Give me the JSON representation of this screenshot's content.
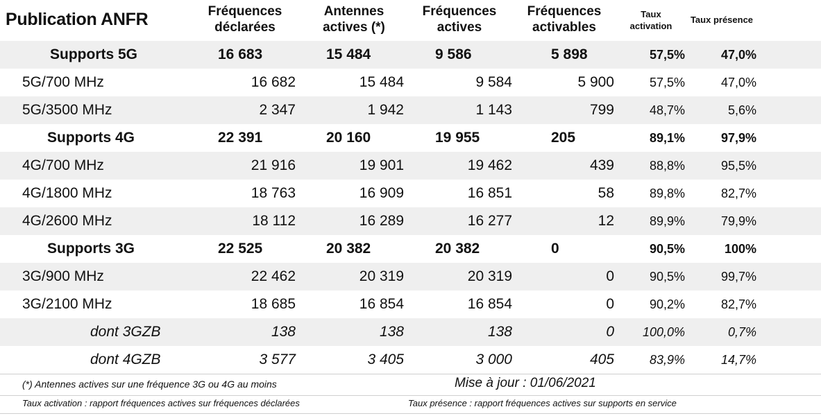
{
  "title": "Publication ANFR",
  "columns": {
    "freq_declarees": [
      "Fréquences",
      "déclarées"
    ],
    "antennes_actives": [
      "Antennes",
      "actives (*)"
    ],
    "freq_actives": [
      "Fréquences",
      "actives"
    ],
    "freq_activables": [
      "Fréquences",
      "activables"
    ],
    "taux_activation": [
      "Taux",
      "activation"
    ],
    "taux_presence": [
      "Taux présence"
    ]
  },
  "rows": [
    {
      "kind": "total",
      "label": "Supports 5G",
      "v": [
        "16 683",
        "15 484",
        "9 586",
        "5 898"
      ],
      "ta": "57,5%",
      "tp": "47,0%"
    },
    {
      "kind": "band",
      "label": "5G/700 MHz",
      "v": [
        "16 682",
        "15 484",
        "9 584",
        "5 900"
      ],
      "ta": "57,5%",
      "tp": "47,0%"
    },
    {
      "kind": "band",
      "label": "5G/3500 MHz",
      "v": [
        "2 347",
        "1 942",
        "1 143",
        "799"
      ],
      "ta": "48,7%",
      "tp": "5,6%"
    },
    {
      "kind": "total",
      "label": "Supports 4G",
      "v": [
        "22 391",
        "20 160",
        "19 955",
        "205"
      ],
      "ta": "89,1%",
      "tp": "97,9%"
    },
    {
      "kind": "band",
      "label": "4G/700 MHz",
      "v": [
        "21 916",
        "19 901",
        "19 462",
        "439"
      ],
      "ta": "88,8%",
      "tp": "95,5%"
    },
    {
      "kind": "band",
      "label": "4G/1800 MHz",
      "v": [
        "18 763",
        "16 909",
        "16 851",
        "58"
      ],
      "ta": "89,8%",
      "tp": "82,7%"
    },
    {
      "kind": "band",
      "label": "4G/2600 MHz",
      "v": [
        "18 112",
        "16 289",
        "16 277",
        "12"
      ],
      "ta": "89,9%",
      "tp": "79,9%"
    },
    {
      "kind": "total",
      "label": "Supports 3G",
      "v": [
        "22 525",
        "20 382",
        "20 382",
        "0"
      ],
      "ta": "90,5%",
      "tp": "100%"
    },
    {
      "kind": "band",
      "label": "3G/900 MHz",
      "v": [
        "22 462",
        "20 319",
        "20 319",
        "0"
      ],
      "ta": "90,5%",
      "tp": "99,7%"
    },
    {
      "kind": "band",
      "label": "3G/2100 MHz",
      "v": [
        "18 685",
        "16 854",
        "16 854",
        "0"
      ],
      "ta": "90,2%",
      "tp": "82,7%"
    },
    {
      "kind": "sub",
      "label": "dont 3GZB",
      "v": [
        "138",
        "138",
        "138",
        "0"
      ],
      "ta": "100,0%",
      "tp": "0,7%"
    },
    {
      "kind": "sub",
      "label": "dont 4GZB",
      "v": [
        "3 577",
        "3 405",
        "3 000",
        "405"
      ],
      "ta": "83,9%",
      "tp": "14,7%"
    }
  ],
  "footnotes": {
    "antennes": "(*) Antennes actives sur une fréquence 3G ou 4G au moins",
    "update": "Mise à jour : 01/06/2021",
    "taux_activation": "Taux activation : rapport fréquences actives sur fréquences déclarées",
    "taux_presence": "Taux présence : rapport fréquences actives sur supports en service"
  }
}
